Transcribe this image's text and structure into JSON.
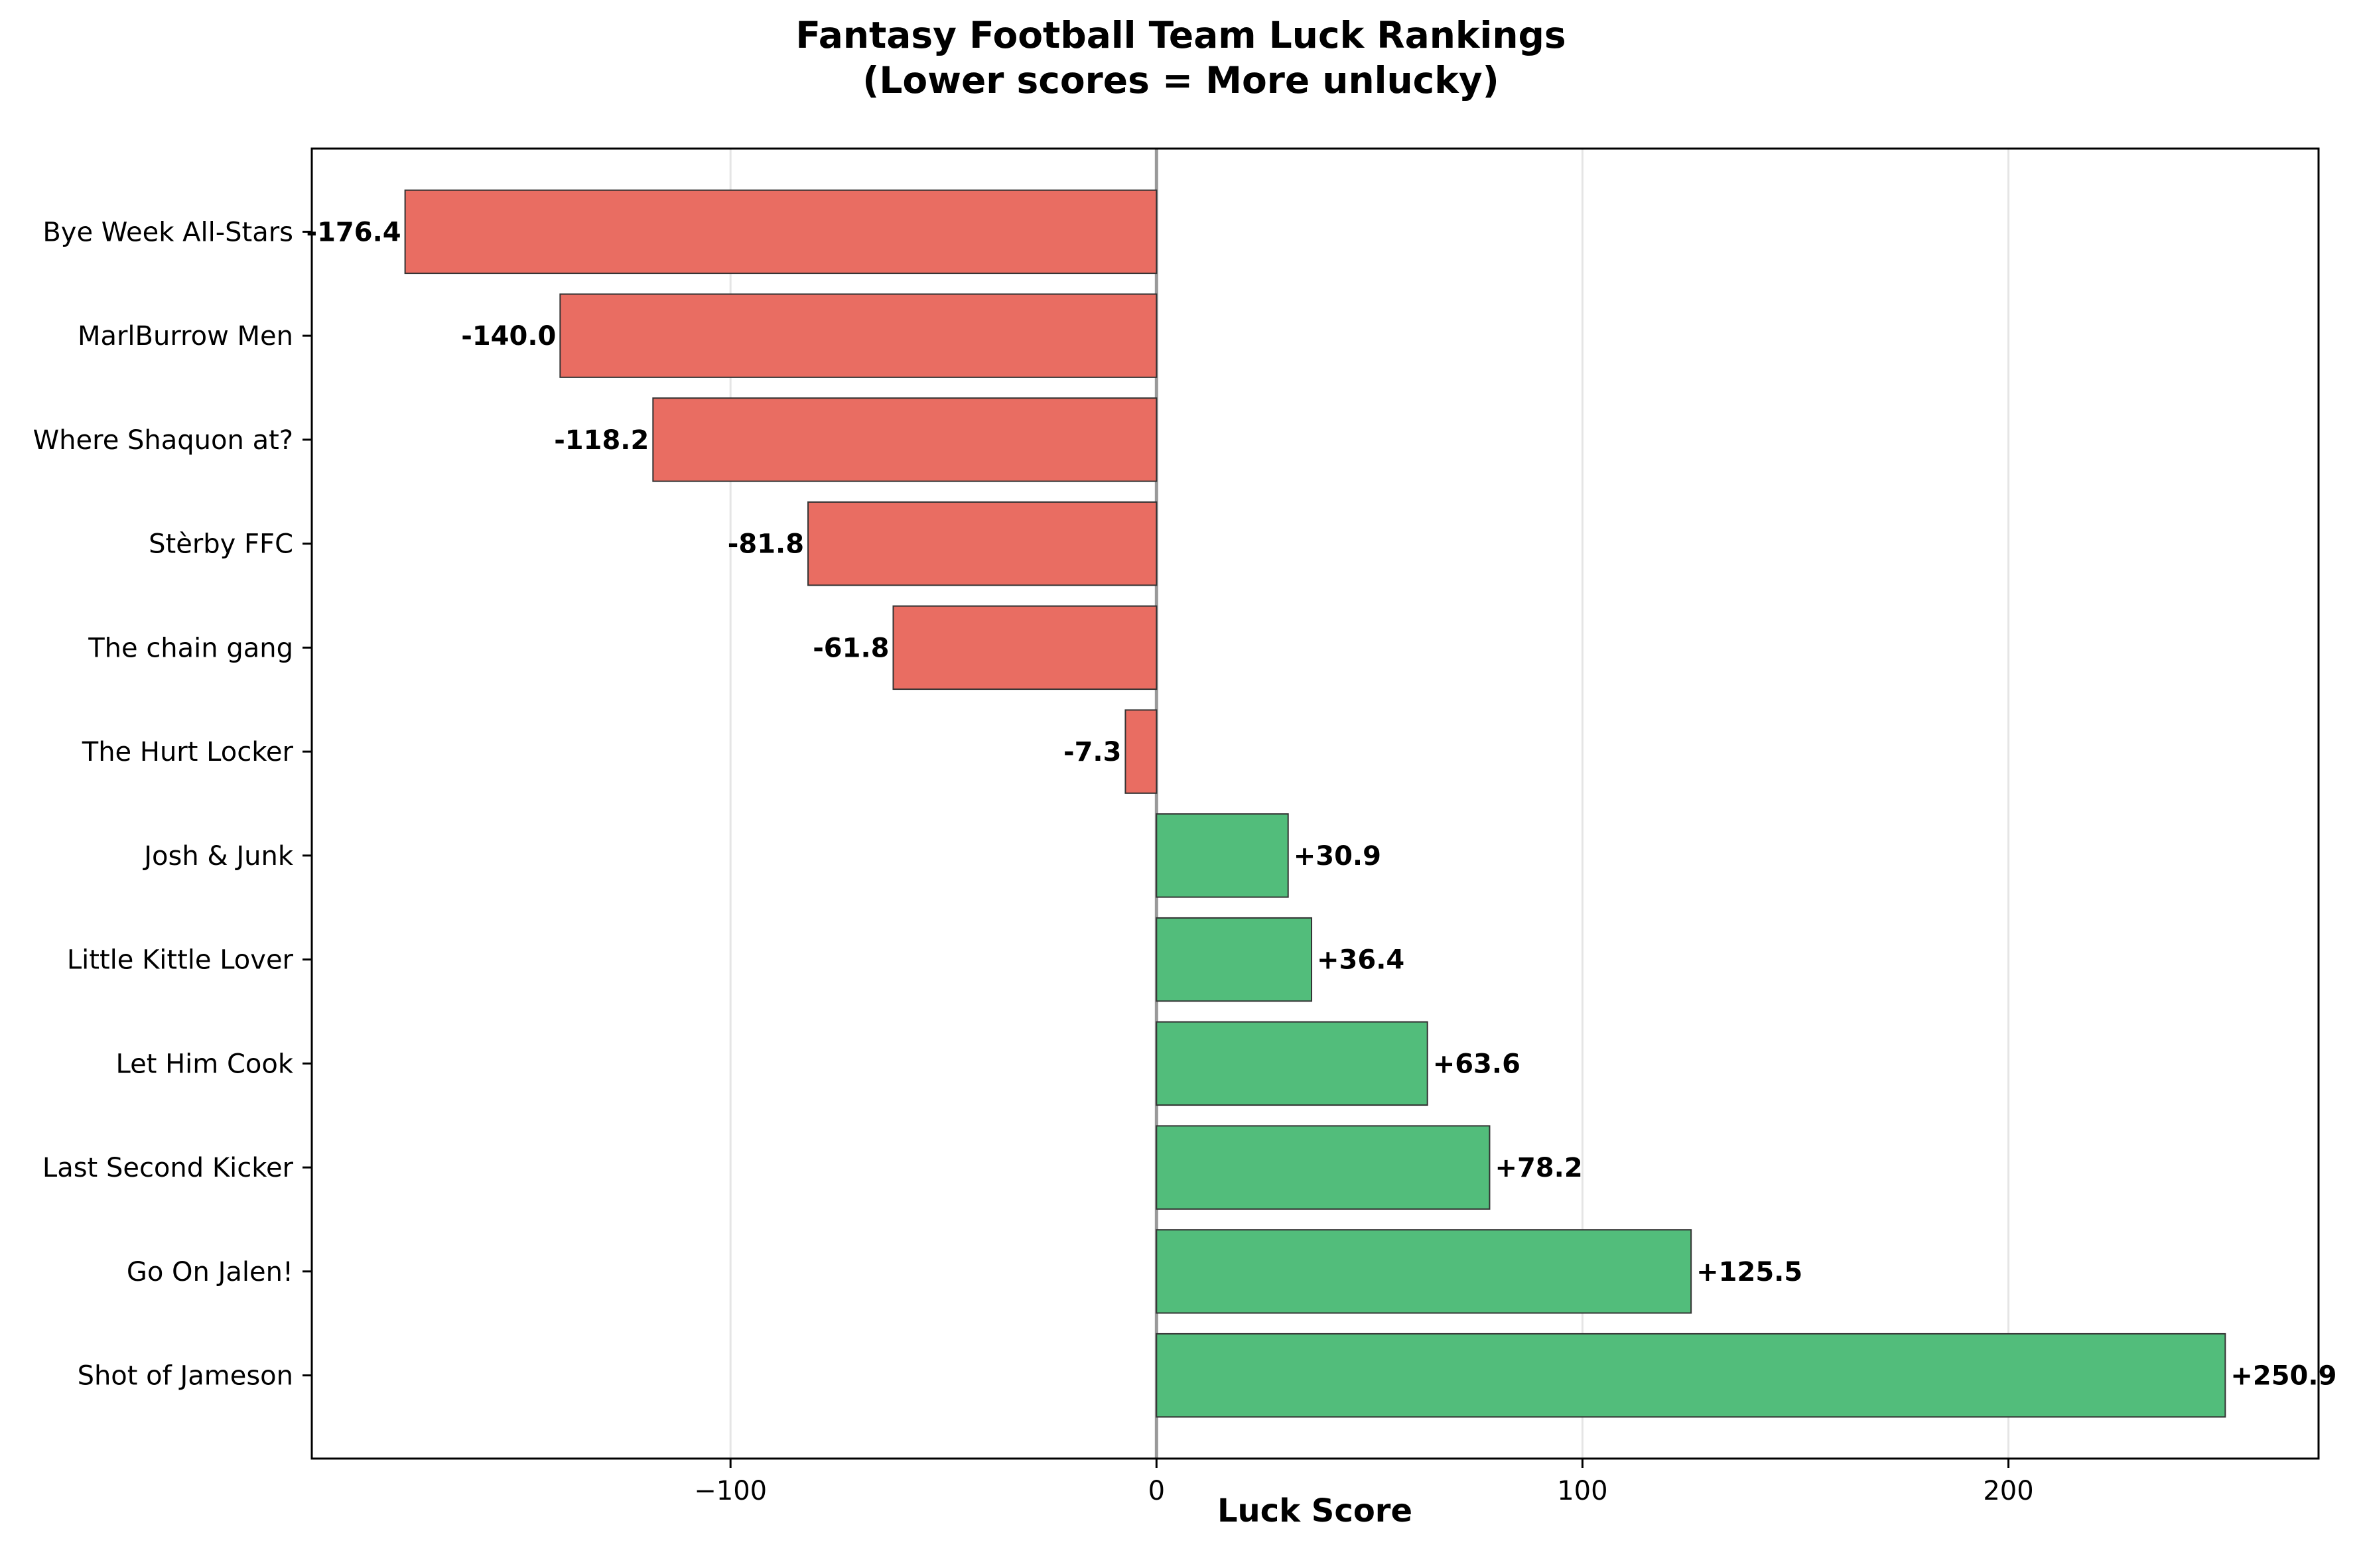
{
  "chart_data": {
    "type": "bar",
    "orientation": "horizontal",
    "title_line1": "Fantasy Football Team Luck Rankings",
    "title_line2": "(Lower scores = More unlucky)",
    "xlabel": "Luck Score",
    "ylabel": "",
    "xlim": [
      -198.3,
      272.8
    ],
    "xticks": [
      -100,
      0,
      100,
      200
    ],
    "xtick_labels": [
      "−100",
      "0",
      "100",
      "200"
    ],
    "grid": "vertical",
    "categories": [
      "Bye Week All-Stars",
      "MarlBurrow Men",
      "Where Shaquon at?",
      "Stèrby FFC",
      "The chain gang",
      "The Hurt Locker",
      "Josh & Junk",
      "Little Kittle Lover",
      "Let Him Cook",
      "Last Second Kicker",
      "Go On Jalen!",
      "Shot of Jameson"
    ],
    "values": [
      -176.4,
      -140.0,
      -118.2,
      -81.8,
      -61.8,
      -7.3,
      30.9,
      36.4,
      63.6,
      78.2,
      125.5,
      250.9
    ],
    "value_labels": [
      "-176.4",
      "-140.0",
      "-118.2",
      "-81.8",
      "-61.8",
      "-7.3",
      "+30.9",
      "+36.4",
      "+63.6",
      "+78.2",
      "+125.5",
      "+250.9"
    ],
    "colors": {
      "negative": "#e96d62",
      "positive": "#52bd7b",
      "edge": "#333333",
      "zero_line": "#999999",
      "grid": "#e5e5e5"
    }
  }
}
